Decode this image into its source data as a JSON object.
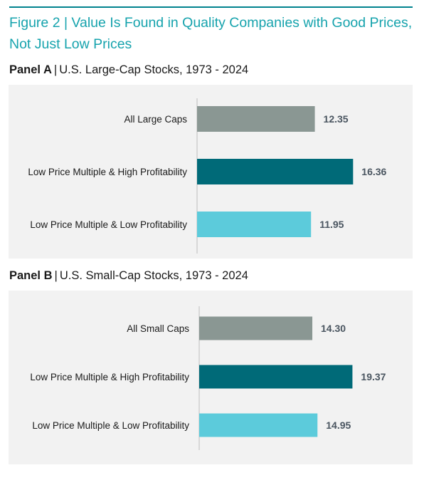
{
  "figure": {
    "title": "Figure 2 | Value Is Found in Quality Companies with Good Prices, Not Just Low Prices"
  },
  "colors": {
    "rule": "#00838f",
    "title": "#16a3ad",
    "panel_bg": "#f2f2f2",
    "bar_all": "#8a9793",
    "bar_high": "#006a78",
    "bar_low": "#5ccbdb",
    "axis": "#bfbfbf"
  },
  "chart_data": [
    {
      "type": "bar",
      "orientation": "horizontal",
      "panel": "Panel A",
      "title": "U.S. Large-Cap Stocks, 1973 - 2024",
      "categories": [
        "All Large Caps",
        "Low Price Multiple & High Profitability",
        "Low Price Multiple & Low Profitability"
      ],
      "values": [
        12.35,
        16.36,
        11.95
      ],
      "value_labels": [
        "12.35",
        "16.36",
        "11.95"
      ],
      "bar_colors": [
        "#8a9793",
        "#006a78",
        "#5ccbdb"
      ],
      "xlim": [
        0,
        18.5
      ],
      "grid": false,
      "legend": "none"
    },
    {
      "type": "bar",
      "orientation": "horizontal",
      "panel": "Panel B",
      "title": "U.S. Small-Cap Stocks, 1973 - 2024",
      "categories": [
        "All Small Caps",
        "Low Price Multiple & High Profitability",
        "Low Price Multiple & Low Profitability"
      ],
      "values": [
        14.3,
        19.37,
        14.95
      ],
      "value_labels": [
        "14.30",
        "19.37",
        "14.95"
      ],
      "bar_colors": [
        "#8a9793",
        "#006a78",
        "#5ccbdb"
      ],
      "xlim": [
        0,
        23.2
      ],
      "grid": false,
      "legend": "none"
    }
  ]
}
